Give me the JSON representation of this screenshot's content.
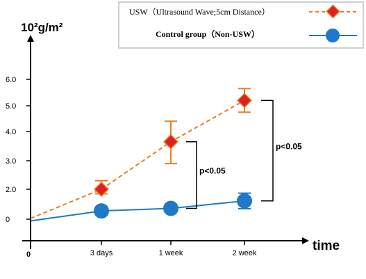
{
  "chart_data": {
    "type": "line",
    "ylabel": "10²g/m²",
    "xlabel": "time",
    "origin_label": "0",
    "categories": [
      "3 days",
      "1 week",
      "2 week"
    ],
    "x_values": [
      0,
      1,
      2,
      3
    ],
    "yticks": [
      "0",
      "2.0",
      "3.0",
      "4.0",
      "5.0",
      "6.0"
    ],
    "ylim": [
      -0.1,
      6.2
    ],
    "grid": false,
    "legend_position": "top-right",
    "series": [
      {
        "name": "USW（Ultrasound Wave;5cm Distance）",
        "style": "dashed",
        "color": "#e67e22",
        "marker_color": "#e02020",
        "marker": "diamond",
        "values": [
          0.05,
          2.0,
          3.65,
          5.2
        ],
        "errors": [
          null,
          0.3,
          0.75,
          0.45
        ]
      },
      {
        "name": "Control group（Non-USW）",
        "style": "solid",
        "color": "#1f78c8",
        "marker_color": "#1f78c8",
        "marker": "circle",
        "values": [
          -0.1,
          0.55,
          0.72,
          1.22
        ],
        "errors": [
          null,
          0.27,
          0.27,
          0.52
        ]
      }
    ],
    "annotations": [
      {
        "text": "p<0.05",
        "category": "1 week"
      },
      {
        "text": "p<0.05",
        "category": "2 week"
      }
    ]
  }
}
